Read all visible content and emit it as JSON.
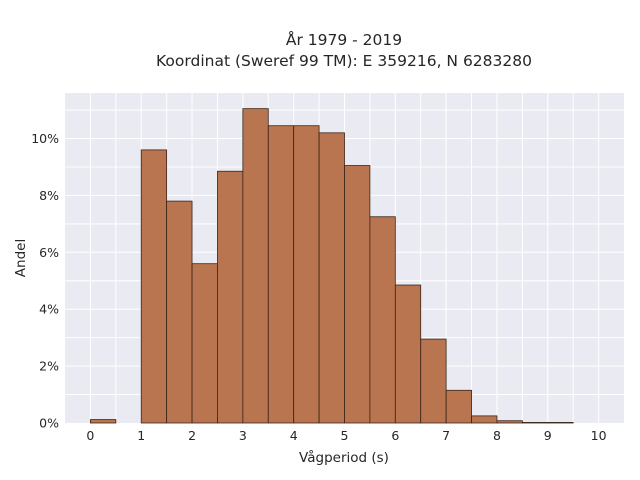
{
  "chart_data": {
    "type": "bar",
    "title": "År 1979 - 2019",
    "subtitle": "Koordinat (Sweref 99 TM): E 359216, N 6283280",
    "xlabel": "Vågperiod (s)",
    "ylabel": "Andel",
    "xlim": [
      -0.5,
      10.5
    ],
    "ylim": [
      0,
      11.6
    ],
    "xticks": [
      0,
      1,
      2,
      3,
      4,
      5,
      6,
      7,
      8,
      9,
      10
    ],
    "xtick_labels": [
      "0",
      "1",
      "2",
      "3",
      "4",
      "5",
      "6",
      "7",
      "8",
      "9",
      "10"
    ],
    "yticks": [
      0,
      2,
      4,
      6,
      8,
      10
    ],
    "ytick_labels": [
      "0%",
      "2%",
      "4%",
      "6%",
      "8%",
      "10%"
    ],
    "grid": true,
    "bar_color": "#b9754f",
    "bar_edge_color": "#3a2418",
    "background_color": "#eaeaf2",
    "bins": [
      {
        "start": 0.0,
        "end": 0.5,
        "value": 0.12
      },
      {
        "start": 0.5,
        "end": 1.0,
        "value": 0.0
      },
      {
        "start": 1.0,
        "end": 1.5,
        "value": 9.6
      },
      {
        "start": 1.5,
        "end": 2.0,
        "value": 7.8
      },
      {
        "start": 2.0,
        "end": 2.5,
        "value": 5.6
      },
      {
        "start": 2.5,
        "end": 3.0,
        "value": 8.85
      },
      {
        "start": 3.0,
        "end": 3.5,
        "value": 11.05
      },
      {
        "start": 3.5,
        "end": 4.0,
        "value": 10.45
      },
      {
        "start": 4.0,
        "end": 4.5,
        "value": 10.45
      },
      {
        "start": 4.5,
        "end": 5.0,
        "value": 10.2
      },
      {
        "start": 5.0,
        "end": 5.5,
        "value": 9.05
      },
      {
        "start": 5.5,
        "end": 6.0,
        "value": 7.25
      },
      {
        "start": 6.0,
        "end": 6.5,
        "value": 4.85
      },
      {
        "start": 6.5,
        "end": 7.0,
        "value": 2.95
      },
      {
        "start": 7.0,
        "end": 7.5,
        "value": 1.15
      },
      {
        "start": 7.5,
        "end": 8.0,
        "value": 0.25
      },
      {
        "start": 8.0,
        "end": 8.5,
        "value": 0.08
      },
      {
        "start": 8.5,
        "end": 9.0,
        "value": 0.02
      },
      {
        "start": 9.0,
        "end": 9.5,
        "value": 0.02
      },
      {
        "start": 9.5,
        "end": 10.0,
        "value": 0.0
      }
    ]
  }
}
